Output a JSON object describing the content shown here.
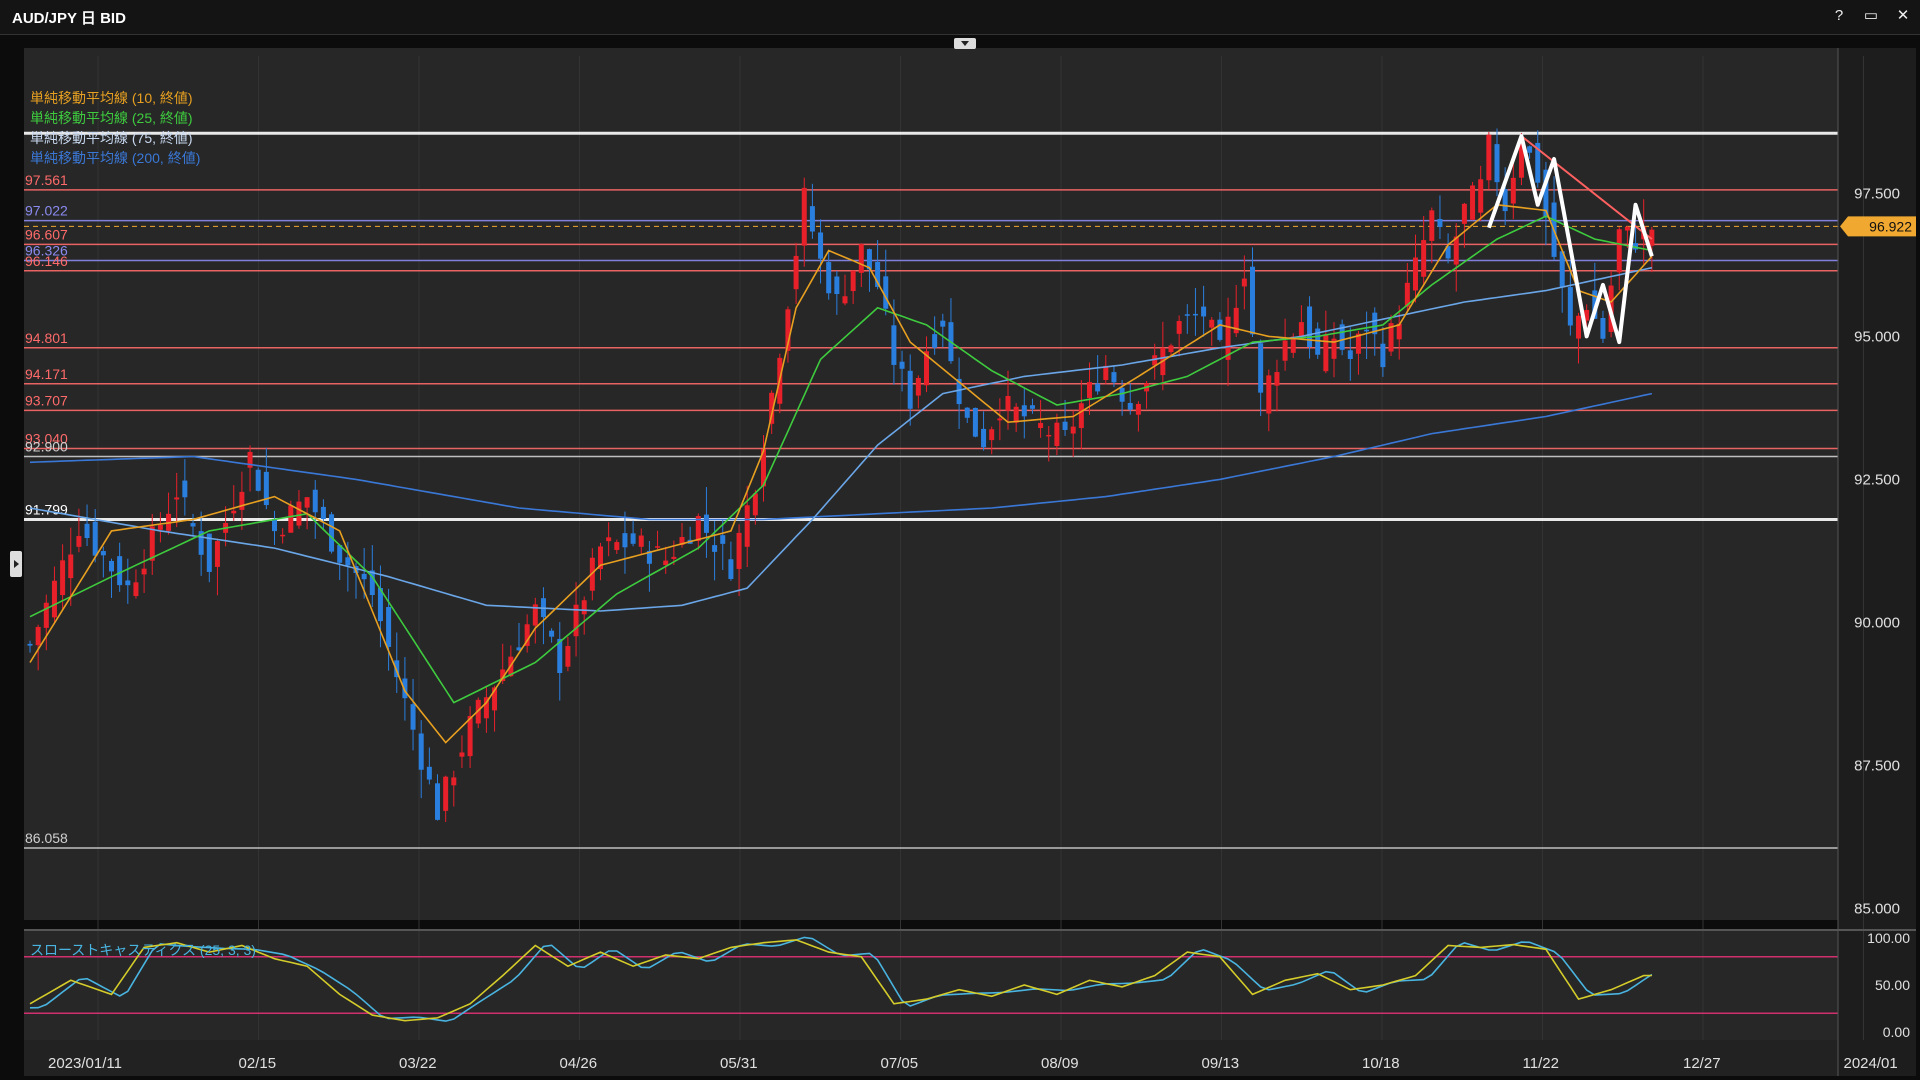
{
  "window": {
    "title": "AUD/JPY 日 BID",
    "buttons": [
      "?",
      "▭",
      "✕"
    ]
  },
  "colors": {
    "background": "#272727",
    "up_candle": "#e8202a",
    "down_candle": "#2a7fde",
    "sma10": "#e8a020",
    "sma25": "#3ecc3e",
    "sma75": "#6aa6e8",
    "sma200": "#3a78d8",
    "stoch_k": "#d4cc2a",
    "stoch_d": "#49b4e0",
    "current_price": "#f0a830"
  },
  "legend": [
    {
      "label": "単純移動平均線 (10, 終値)",
      "color": "#e8a020"
    },
    {
      "label": "単純移動平均線 (25, 終値)",
      "color": "#3ecc3e"
    },
    {
      "label": "単純移動平均線 (75, 終値)",
      "color": "#c8d8f0"
    },
    {
      "label": "単純移動平均線 (200, 終値)",
      "color": "#3a78d8"
    }
  ],
  "stoch_legend": "スローストキャスティクス (25, 3, 3)",
  "chart_data": [
    {
      "type": "candlestick",
      "title": "AUD/JPY 日 BID",
      "x_labels": [
        "2023/01/11",
        "02/15",
        "03/22",
        "04/26",
        "05/31",
        "07/05",
        "08/09",
        "09/13",
        "10/18",
        "11/22",
        "12/27",
        "2024/01"
      ],
      "ylim": [
        84.8,
        99.9
      ],
      "y_ticks": [
        "97.500",
        "95.000",
        "92.500",
        "90.000",
        "87.500",
        "85.000"
      ],
      "current_price": "96.922",
      "horizontal_levels": [
        {
          "value": 98.55,
          "color": "#ffffff",
          "label": ""
        },
        {
          "value": 97.561,
          "color": "#ff6a6a",
          "label": "97.561"
        },
        {
          "value": 97.022,
          "color": "#8a8af0",
          "label": "97.022"
        },
        {
          "value": 96.607,
          "color": "#ff6a6a",
          "label": "96.607"
        },
        {
          "value": 96.326,
          "color": "#8a8af0",
          "label": "96.326"
        },
        {
          "value": 96.146,
          "color": "#ff6a6a",
          "label": "96.146"
        },
        {
          "value": 94.801,
          "color": "#ff6a6a",
          "label": "94.801"
        },
        {
          "value": 94.171,
          "color": "#ff6a6a",
          "label": "94.171"
        },
        {
          "value": 93.707,
          "color": "#ff6a6a",
          "label": "93.707"
        },
        {
          "value": 93.04,
          "color": "#ff6a6a",
          "label": "93.040"
        },
        {
          "value": 92.9,
          "color": "#d0d0d0",
          "label": "92.900"
        },
        {
          "value": 91.799,
          "color": "#ffffff",
          "label": "91.799"
        },
        {
          "value": 86.058,
          "color": "#d0d0d0",
          "label": "86.058"
        }
      ],
      "price_path": [
        [
          0,
          89.6
        ],
        [
          6,
          91.7
        ],
        [
          12,
          90.6
        ],
        [
          18,
          92.3
        ],
        [
          22,
          91.0
        ],
        [
          27,
          92.9
        ],
        [
          30,
          91.6
        ],
        [
          34,
          92.2
        ],
        [
          38,
          91.2
        ],
        [
          42,
          90.5
        ],
        [
          46,
          88.6
        ],
        [
          50,
          86.7
        ],
        [
          54,
          88.2
        ],
        [
          58,
          89.2
        ],
        [
          62,
          90.2
        ],
        [
          65,
          89.3
        ],
        [
          70,
          91.3
        ],
        [
          74,
          91.4
        ],
        [
          78,
          91.1
        ],
        [
          82,
          91.8
        ],
        [
          86,
          91.0
        ],
        [
          89,
          92.5
        ],
        [
          91,
          94.0
        ],
        [
          94,
          96.5
        ],
        [
          95,
          97.4
        ],
        [
          97,
          96.3
        ],
        [
          99,
          95.6
        ],
        [
          102,
          96.5
        ],
        [
          104,
          95.9
        ],
        [
          106,
          94.6
        ],
        [
          108,
          93.9
        ],
        [
          110,
          94.8
        ],
        [
          112,
          95.3
        ],
        [
          113,
          94.5
        ],
        [
          115,
          93.5
        ],
        [
          117,
          93.2
        ],
        [
          119,
          93.8
        ],
        [
          122,
          93.6
        ],
        [
          124,
          93.4
        ],
        [
          127,
          93.2
        ],
        [
          129,
          93.8
        ],
        [
          132,
          94.5
        ],
        [
          135,
          93.8
        ],
        [
          138,
          94.5
        ],
        [
          141,
          95.2
        ],
        [
          144,
          95.4
        ],
        [
          146,
          94.7
        ],
        [
          149,
          96.2
        ],
        [
          151,
          93.9
        ],
        [
          154,
          94.9
        ],
        [
          156,
          95.3
        ],
        [
          158,
          94.6
        ],
        [
          160,
          95.0
        ],
        [
          162,
          94.6
        ],
        [
          164,
          95.2
        ],
        [
          166,
          94.7
        ],
        [
          168,
          95.4
        ],
        [
          170,
          96.2
        ],
        [
          172,
          97.1
        ],
        [
          174,
          96.3
        ],
        [
          176,
          97.2
        ],
        [
          178,
          97.6
        ],
        [
          179,
          98.3
        ],
        [
          181,
          97.3
        ],
        [
          183,
          98.5
        ],
        [
          185,
          97.8
        ],
        [
          187,
          96.4
        ],
        [
          189,
          95.1
        ],
        [
          191,
          95.6
        ],
        [
          193,
          95.0
        ],
        [
          195,
          96.8
        ],
        [
          197,
          96.7
        ],
        [
          199,
          96.9
        ]
      ],
      "sma10": [
        [
          0,
          89.3
        ],
        [
          10,
          91.6
        ],
        [
          20,
          91.8
        ],
        [
          30,
          92.2
        ],
        [
          38,
          91.6
        ],
        [
          46,
          88.8
        ],
        [
          51,
          87.9
        ],
        [
          56,
          88.6
        ],
        [
          62,
          89.9
        ],
        [
          70,
          91.0
        ],
        [
          78,
          91.3
        ],
        [
          86,
          91.6
        ],
        [
          90,
          93.0
        ],
        [
          94,
          95.5
        ],
        [
          98,
          96.5
        ],
        [
          103,
          96.2
        ],
        [
          108,
          94.9
        ],
        [
          114,
          94.2
        ],
        [
          120,
          93.5
        ],
        [
          128,
          93.6
        ],
        [
          136,
          94.3
        ],
        [
          146,
          95.2
        ],
        [
          152,
          95.0
        ],
        [
          160,
          94.9
        ],
        [
          168,
          95.2
        ],
        [
          174,
          96.6
        ],
        [
          180,
          97.3
        ],
        [
          186,
          97.2
        ],
        [
          190,
          95.8
        ],
        [
          194,
          95.6
        ],
        [
          199,
          96.4
        ]
      ],
      "sma25": [
        [
          0,
          90.1
        ],
        [
          10,
          90.8
        ],
        [
          22,
          91.6
        ],
        [
          34,
          91.9
        ],
        [
          42,
          90.8
        ],
        [
          52,
          88.6
        ],
        [
          62,
          89.3
        ],
        [
          72,
          90.5
        ],
        [
          82,
          91.3
        ],
        [
          90,
          92.4
        ],
        [
          97,
          94.6
        ],
        [
          104,
          95.5
        ],
        [
          110,
          95.2
        ],
        [
          118,
          94.4
        ],
        [
          126,
          93.8
        ],
        [
          134,
          94.0
        ],
        [
          142,
          94.3
        ],
        [
          150,
          94.9
        ],
        [
          158,
          95.0
        ],
        [
          166,
          95.2
        ],
        [
          172,
          95.9
        ],
        [
          180,
          96.7
        ],
        [
          186,
          97.1
        ],
        [
          192,
          96.7
        ],
        [
          199,
          96.5
        ]
      ],
      "sma75": [
        [
          0,
          92.0
        ],
        [
          16,
          91.6
        ],
        [
          30,
          91.3
        ],
        [
          44,
          90.8
        ],
        [
          56,
          90.3
        ],
        [
          70,
          90.2
        ],
        [
          80,
          90.3
        ],
        [
          88,
          90.6
        ],
        [
          96,
          91.8
        ],
        [
          104,
          93.1
        ],
        [
          112,
          94.0
        ],
        [
          122,
          94.3
        ],
        [
          134,
          94.5
        ],
        [
          146,
          94.8
        ],
        [
          156,
          95.0
        ],
        [
          166,
          95.3
        ],
        [
          176,
          95.6
        ],
        [
          186,
          95.8
        ],
        [
          199,
          96.2
        ]
      ],
      "sma200": [
        [
          0,
          92.8
        ],
        [
          20,
          92.9
        ],
        [
          40,
          92.5
        ],
        [
          60,
          92.0
        ],
        [
          76,
          91.8
        ],
        [
          90,
          91.8
        ],
        [
          104,
          91.9
        ],
        [
          118,
          92.0
        ],
        [
          132,
          92.2
        ],
        [
          146,
          92.5
        ],
        [
          160,
          92.9
        ],
        [
          172,
          93.3
        ],
        [
          186,
          93.6
        ],
        [
          199,
          94.0
        ]
      ],
      "trendlines": [
        {
          "color": "#ff6060",
          "points": [
            [
              183,
              98.5
            ],
            [
              199,
              96.7
            ]
          ]
        }
      ],
      "zigzag": [
        [
          179,
          96.9
        ],
        [
          183,
          98.5
        ],
        [
          185,
          97.3
        ],
        [
          187,
          98.1
        ],
        [
          191,
          95.0
        ],
        [
          193,
          95.9
        ],
        [
          195,
          94.9
        ],
        [
          197,
          97.3
        ],
        [
          199,
          96.4
        ]
      ]
    },
    {
      "type": "line",
      "title": "スローストキャスティクス (25, 3, 3)",
      "ylim": [
        0,
        100
      ],
      "y_ticks": [
        "100.00",
        "50.00",
        "0.00"
      ],
      "levels": [
        80,
        20
      ],
      "k": [
        [
          0,
          30
        ],
        [
          5,
          55
        ],
        [
          10,
          40
        ],
        [
          14,
          90
        ],
        [
          18,
          95
        ],
        [
          22,
          85
        ],
        [
          26,
          92
        ],
        [
          30,
          78
        ],
        [
          34,
          70
        ],
        [
          38,
          40
        ],
        [
          42,
          18
        ],
        [
          46,
          12
        ],
        [
          50,
          15
        ],
        [
          54,
          30
        ],
        [
          58,
          60
        ],
        [
          62,
          92
        ],
        [
          66,
          70
        ],
        [
          70,
          85
        ],
        [
          74,
          70
        ],
        [
          78,
          82
        ],
        [
          82,
          78
        ],
        [
          86,
          90
        ],
        [
          90,
          95
        ],
        [
          94,
          98
        ],
        [
          98,
          85
        ],
        [
          102,
          80
        ],
        [
          106,
          30
        ],
        [
          110,
          35
        ],
        [
          114,
          45
        ],
        [
          118,
          38
        ],
        [
          122,
          50
        ],
        [
          126,
          40
        ],
        [
          130,
          55
        ],
        [
          134,
          48
        ],
        [
          138,
          60
        ],
        [
          142,
          85
        ],
        [
          146,
          80
        ],
        [
          150,
          40
        ],
        [
          154,
          55
        ],
        [
          158,
          62
        ],
        [
          162,
          45
        ],
        [
          166,
          50
        ],
        [
          170,
          60
        ],
        [
          174,
          92
        ],
        [
          178,
          90
        ],
        [
          182,
          93
        ],
        [
          186,
          88
        ],
        [
          190,
          35
        ],
        [
          194,
          45
        ],
        [
          198,
          60
        ]
      ]
    }
  ]
}
